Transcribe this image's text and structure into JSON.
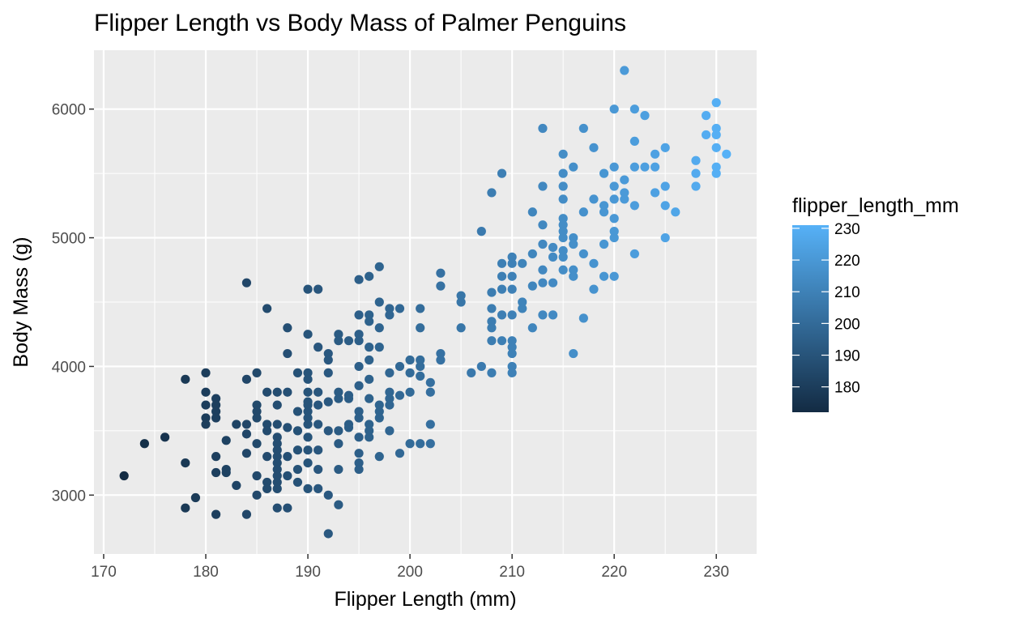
{
  "chart_data": {
    "type": "scatter",
    "title": "Flipper Length vs Body Mass of Palmer Penguins",
    "xlabel": "Flipper Length (mm)",
    "ylabel": "Body Mass (g)",
    "xlim": [
      169.05,
      233.95
    ],
    "ylim": [
      2542.5,
      6457.5
    ],
    "x_ticks": [
      170,
      180,
      190,
      200,
      210,
      220,
      230
    ],
    "y_ticks": [
      3000,
      4000,
      5000,
      6000
    ],
    "grid": true,
    "legend": {
      "title": "flipper_length_mm",
      "placement": "right",
      "type": "colorbar",
      "ticks": [
        180,
        190,
        200,
        210,
        220,
        230
      ],
      "range": [
        172,
        231
      ]
    },
    "color_scale": {
      "low": "#132B43",
      "high": "#56B1F7",
      "variable": "flipper_length_mm"
    },
    "points": [
      [
        172,
        3150
      ],
      [
        174,
        3400
      ],
      [
        176,
        3450
      ],
      [
        178,
        3900
      ],
      [
        178,
        3250
      ],
      [
        178,
        2900
      ],
      [
        179,
        2980
      ],
      [
        180,
        3950
      ],
      [
        180,
        3800
      ],
      [
        180,
        3700
      ],
      [
        180,
        3600
      ],
      [
        180,
        3550
      ],
      [
        181,
        3750
      ],
      [
        181,
        3700
      ],
      [
        181,
        3650
      ],
      [
        181,
        3600
      ],
      [
        181,
        3300
      ],
      [
        181,
        3175
      ],
      [
        181,
        2850
      ],
      [
        182,
        3425
      ],
      [
        182,
        3200
      ],
      [
        182,
        3175
      ],
      [
        183,
        3550
      ],
      [
        183,
        3075
      ],
      [
        184,
        4650
      ],
      [
        184,
        3900
      ],
      [
        184,
        3550
      ],
      [
        184,
        3475
      ],
      [
        184,
        3325
      ],
      [
        184,
        2850
      ],
      [
        185,
        3950
      ],
      [
        185,
        3700
      ],
      [
        185,
        3650
      ],
      [
        185,
        3600
      ],
      [
        185,
        3400
      ],
      [
        185,
        3150
      ],
      [
        185,
        3000
      ],
      [
        186,
        4450
      ],
      [
        186,
        3800
      ],
      [
        186,
        3550
      ],
      [
        186,
        3500
      ],
      [
        186,
        3300
      ],
      [
        186,
        3100
      ],
      [
        186,
        3050
      ],
      [
        187,
        3800
      ],
      [
        187,
        3700
      ],
      [
        187,
        3550
      ],
      [
        187,
        3450
      ],
      [
        187,
        3400
      ],
      [
        187,
        3350
      ],
      [
        187,
        3300
      ],
      [
        187,
        3250
      ],
      [
        187,
        3200
      ],
      [
        187,
        3150
      ],
      [
        187,
        3100
      ],
      [
        187,
        3050
      ],
      [
        187,
        2900
      ],
      [
        188,
        4300
      ],
      [
        188,
        4100
      ],
      [
        188,
        3800
      ],
      [
        188,
        3525
      ],
      [
        188,
        3300
      ],
      [
        188,
        3150
      ],
      [
        188,
        2900
      ],
      [
        189,
        3950
      ],
      [
        189,
        3650
      ],
      [
        189,
        3500
      ],
      [
        189,
        3350
      ],
      [
        189,
        3200
      ],
      [
        189,
        3100
      ],
      [
        190,
        4600
      ],
      [
        190,
        4250
      ],
      [
        190,
        3950
      ],
      [
        190,
        3900
      ],
      [
        190,
        3800
      ],
      [
        190,
        3725
      ],
      [
        190,
        3700
      ],
      [
        190,
        3650
      ],
      [
        190,
        3600
      ],
      [
        190,
        3550
      ],
      [
        190,
        3450
      ],
      [
        190,
        3350
      ],
      [
        190,
        3250
      ],
      [
        190,
        3050
      ],
      [
        191,
        4600
      ],
      [
        191,
        4150
      ],
      [
        191,
        3800
      ],
      [
        191,
        3700
      ],
      [
        191,
        3550
      ],
      [
        191,
        3350
      ],
      [
        191,
        3200
      ],
      [
        191,
        3050
      ],
      [
        192,
        4100
      ],
      [
        192,
        4050
      ],
      [
        192,
        3950
      ],
      [
        192,
        3725
      ],
      [
        192,
        3500
      ],
      [
        192,
        3000
      ],
      [
        192,
        2700
      ],
      [
        193,
        4250
      ],
      [
        193,
        4200
      ],
      [
        193,
        3800
      ],
      [
        193,
        3750
      ],
      [
        193,
        3500
      ],
      [
        193,
        3400
      ],
      [
        193,
        3200
      ],
      [
        193,
        2925
      ],
      [
        194,
        4200
      ],
      [
        194,
        3775
      ],
      [
        194,
        3750
      ],
      [
        194,
        3525
      ],
      [
        194,
        3550
      ],
      [
        195,
        4675
      ],
      [
        195,
        4400
      ],
      [
        195,
        4250
      ],
      [
        195,
        4200
      ],
      [
        195,
        4000
      ],
      [
        195,
        3850
      ],
      [
        195,
        3650
      ],
      [
        195,
        3600
      ],
      [
        195,
        3450
      ],
      [
        195,
        3325
      ],
      [
        195,
        3250
      ],
      [
        195,
        3200
      ],
      [
        196,
        4700
      ],
      [
        196,
        4400
      ],
      [
        196,
        4350
      ],
      [
        196,
        4150
      ],
      [
        196,
        4050
      ],
      [
        196,
        3900
      ],
      [
        196,
        3750
      ],
      [
        196,
        3550
      ],
      [
        196,
        3500
      ],
      [
        196,
        3450
      ],
      [
        197,
        4775
      ],
      [
        197,
        4500
      ],
      [
        197,
        4300
      ],
      [
        197,
        4150
      ],
      [
        197,
        3700
      ],
      [
        197,
        3650
      ],
      [
        197,
        3600
      ],
      [
        197,
        3300
      ],
      [
        198,
        4450
      ],
      [
        198,
        4400
      ],
      [
        198,
        3950
      ],
      [
        198,
        3800
      ],
      [
        198,
        3750
      ],
      [
        198,
        3700
      ],
      [
        198,
        3500
      ],
      [
        199,
        4450
      ],
      [
        199,
        4000
      ],
      [
        199,
        3775
      ],
      [
        199,
        3325
      ],
      [
        200,
        4050
      ],
      [
        200,
        3950
      ],
      [
        200,
        3800
      ],
      [
        200,
        3400
      ],
      [
        201,
        4450
      ],
      [
        201,
        4300
      ],
      [
        201,
        4050
      ],
      [
        201,
        4000
      ],
      [
        201,
        3925
      ],
      [
        201,
        3400
      ],
      [
        202,
        3875
      ],
      [
        202,
        3800
      ],
      [
        202,
        3550
      ],
      [
        202,
        3400
      ],
      [
        203,
        4725
      ],
      [
        203,
        4625
      ],
      [
        203,
        4100
      ],
      [
        203,
        4050
      ],
      [
        205,
        4550
      ],
      [
        205,
        4500
      ],
      [
        205,
        4300
      ],
      [
        206,
        3950
      ],
      [
        207,
        5050
      ],
      [
        207,
        4000
      ],
      [
        208,
        5350
      ],
      [
        208,
        4575
      ],
      [
        208,
        4450
      ],
      [
        208,
        4350
      ],
      [
        208,
        4300
      ],
      [
        208,
        4200
      ],
      [
        208,
        3950
      ],
      [
        209,
        5500
      ],
      [
        209,
        4800
      ],
      [
        209,
        4700
      ],
      [
        209,
        4600
      ],
      [
        209,
        4400
      ],
      [
        209,
        4200
      ],
      [
        210,
        4850
      ],
      [
        210,
        4800
      ],
      [
        210,
        4700
      ],
      [
        210,
        4600
      ],
      [
        210,
        4400
      ],
      [
        210,
        4200
      ],
      [
        210,
        4150
      ],
      [
        210,
        4100
      ],
      [
        210,
        4000
      ],
      [
        210,
        3950
      ],
      [
        211,
        4800
      ],
      [
        211,
        4450
      ],
      [
        211,
        4500
      ],
      [
        212,
        5200
      ],
      [
        212,
        4875
      ],
      [
        212,
        4625
      ],
      [
        212,
        4300
      ],
      [
        213,
        5850
      ],
      [
        213,
        5400
      ],
      [
        213,
        5100
      ],
      [
        213,
        4950
      ],
      [
        213,
        4750
      ],
      [
        213,
        4650
      ],
      [
        213,
        4400
      ],
      [
        214,
        4925
      ],
      [
        214,
        4850
      ],
      [
        214,
        4650
      ],
      [
        214,
        4400
      ],
      [
        215,
        5650
      ],
      [
        215,
        5500
      ],
      [
        215,
        5400
      ],
      [
        215,
        5300
      ],
      [
        215,
        5150
      ],
      [
        215,
        5100
      ],
      [
        215,
        5050
      ],
      [
        215,
        5000
      ],
      [
        215,
        4900
      ],
      [
        215,
        4850
      ],
      [
        215,
        4750
      ],
      [
        216,
        5550
      ],
      [
        216,
        5000
      ],
      [
        216,
        4950
      ],
      [
        216,
        4750
      ],
      [
        216,
        4700
      ],
      [
        216,
        4100
      ],
      [
        217,
        5850
      ],
      [
        217,
        5200
      ],
      [
        217,
        4875
      ],
      [
        217,
        4375
      ],
      [
        218,
        5700
      ],
      [
        218,
        5300
      ],
      [
        218,
        4800
      ],
      [
        218,
        4600
      ],
      [
        219,
        5500
      ],
      [
        219,
        5250
      ],
      [
        219,
        5200
      ],
      [
        219,
        4950
      ],
      [
        219,
        4700
      ],
      [
        220,
        6000
      ],
      [
        220,
        5550
      ],
      [
        220,
        5400
      ],
      [
        220,
        5300
      ],
      [
        220,
        5150
      ],
      [
        220,
        5050
      ],
      [
        220,
        5000
      ],
      [
        220,
        4700
      ],
      [
        221,
        6300
      ],
      [
        221,
        5450
      ],
      [
        221,
        5300
      ],
      [
        221,
        5350
      ],
      [
        222,
        6000
      ],
      [
        222,
        5750
      ],
      [
        222,
        5550
      ],
      [
        222,
        5250
      ],
      [
        222,
        4875
      ],
      [
        223,
        5950
      ],
      [
        223,
        5550
      ],
      [
        224,
        5650
      ],
      [
        224,
        5550
      ],
      [
        224,
        5350
      ],
      [
        225,
        5700
      ],
      [
        225,
        5400
      ],
      [
        225,
        5250
      ],
      [
        225,
        5000
      ],
      [
        226,
        5200
      ],
      [
        228,
        5600
      ],
      [
        228,
        5500
      ],
      [
        228,
        5400
      ],
      [
        229,
        5950
      ],
      [
        229,
        5800
      ],
      [
        230,
        6050
      ],
      [
        230,
        5850
      ],
      [
        230,
        5800
      ],
      [
        230,
        5700
      ],
      [
        230,
        5550
      ],
      [
        230,
        5500
      ],
      [
        231,
        5650
      ]
    ]
  }
}
